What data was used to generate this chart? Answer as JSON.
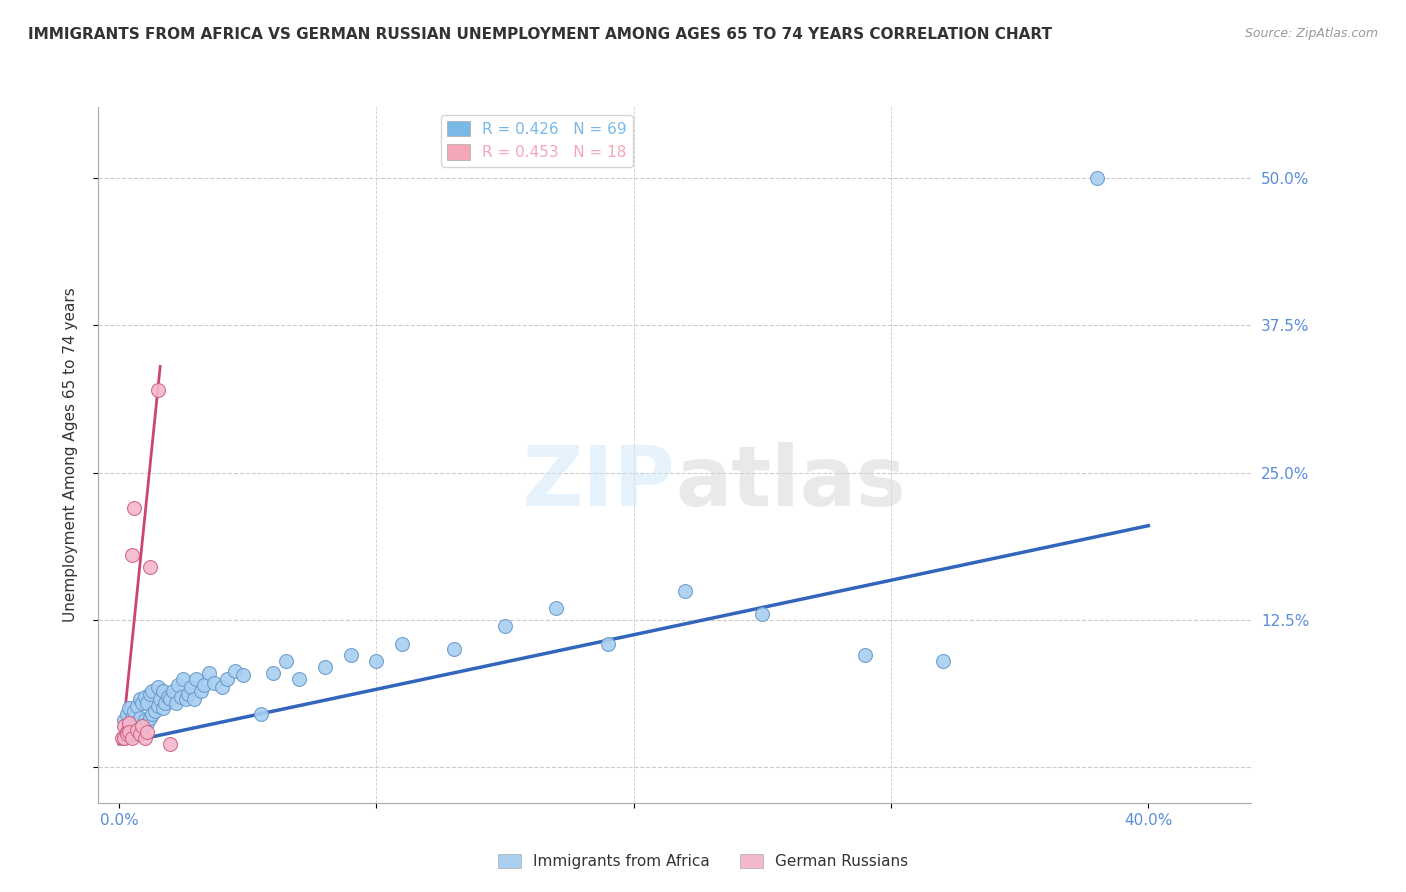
{
  "title": "IMMIGRANTS FROM AFRICA VS GERMAN RUSSIAN UNEMPLOYMENT AMONG AGES 65 TO 74 YEARS CORRELATION CHART",
  "source": "Source: ZipAtlas.com",
  "ylabel": "Unemployment Among Ages 65 to 74 years",
  "yticks": [
    0.0,
    0.125,
    0.25,
    0.375,
    0.5
  ],
  "ytick_labels": [
    "",
    "12.5%",
    "25.0%",
    "37.5%",
    "50.0%"
  ],
  "xtick_positions": [
    0.0,
    0.1,
    0.2,
    0.3,
    0.4
  ],
  "xtick_labels": [
    "0.0%",
    "",
    "",
    "",
    "40.0%"
  ],
  "xlim": [
    -0.008,
    0.44
  ],
  "ylim": [
    -0.03,
    0.56
  ],
  "watermark": "ZIPatlas",
  "legend_entries": [
    {
      "label": "R = 0.426   N = 69",
      "color": "#7ab8e8"
    },
    {
      "label": "R = 0.453   N = 18",
      "color": "#f4a7b9"
    }
  ],
  "blue_scatter": {
    "color": "#a8cff0",
    "edge_color": "#6699cc",
    "x": [
      0.002,
      0.002,
      0.003,
      0.003,
      0.004,
      0.004,
      0.005,
      0.005,
      0.006,
      0.006,
      0.007,
      0.007,
      0.008,
      0.008,
      0.008,
      0.009,
      0.009,
      0.01,
      0.01,
      0.011,
      0.011,
      0.012,
      0.012,
      0.013,
      0.013,
      0.014,
      0.015,
      0.015,
      0.016,
      0.017,
      0.017,
      0.018,
      0.019,
      0.02,
      0.021,
      0.022,
      0.023,
      0.024,
      0.025,
      0.026,
      0.027,
      0.028,
      0.029,
      0.03,
      0.032,
      0.033,
      0.035,
      0.037,
      0.04,
      0.042,
      0.045,
      0.048,
      0.055,
      0.06,
      0.065,
      0.07,
      0.08,
      0.09,
      0.1,
      0.11,
      0.13,
      0.15,
      0.17,
      0.19,
      0.22,
      0.25,
      0.29,
      0.32,
      0.38
    ],
    "y": [
      0.025,
      0.04,
      0.03,
      0.045,
      0.035,
      0.05,
      0.028,
      0.042,
      0.032,
      0.048,
      0.038,
      0.052,
      0.042,
      0.03,
      0.058,
      0.035,
      0.055,
      0.04,
      0.06,
      0.038,
      0.055,
      0.042,
      0.062,
      0.045,
      0.065,
      0.048,
      0.052,
      0.068,
      0.058,
      0.05,
      0.065,
      0.055,
      0.06,
      0.058,
      0.065,
      0.055,
      0.07,
      0.06,
      0.075,
      0.058,
      0.062,
      0.068,
      0.058,
      0.075,
      0.065,
      0.07,
      0.08,
      0.072,
      0.068,
      0.075,
      0.082,
      0.078,
      0.045,
      0.08,
      0.09,
      0.075,
      0.085,
      0.095,
      0.09,
      0.105,
      0.1,
      0.12,
      0.135,
      0.105,
      0.15,
      0.13,
      0.095,
      0.09,
      0.5
    ]
  },
  "pink_scatter": {
    "color": "#f4b8cc",
    "edge_color": "#d06080",
    "x": [
      0.001,
      0.002,
      0.002,
      0.003,
      0.003,
      0.004,
      0.004,
      0.005,
      0.005,
      0.006,
      0.007,
      0.008,
      0.009,
      0.01,
      0.011,
      0.012,
      0.015,
      0.02
    ],
    "y": [
      0.025,
      0.035,
      0.025,
      0.03,
      0.028,
      0.038,
      0.03,
      0.025,
      0.18,
      0.22,
      0.032,
      0.028,
      0.035,
      0.025,
      0.03,
      0.17,
      0.32,
      0.02
    ]
  },
  "blue_line": {
    "color": "#3366bb",
    "x_start": 0.0,
    "x_end": 0.4,
    "y_start": 0.02,
    "y_end": 0.205
  },
  "pink_line": {
    "color": "#cc4477",
    "x_start": 0.001,
    "x_end": 0.016,
    "y_start": 0.02,
    "y_end": 0.34
  },
  "title_fontsize": 11,
  "source_fontsize": 9,
  "tick_color": "#5b8dd9",
  "grid_color": "#cccccc",
  "grid_linestyle": "--"
}
